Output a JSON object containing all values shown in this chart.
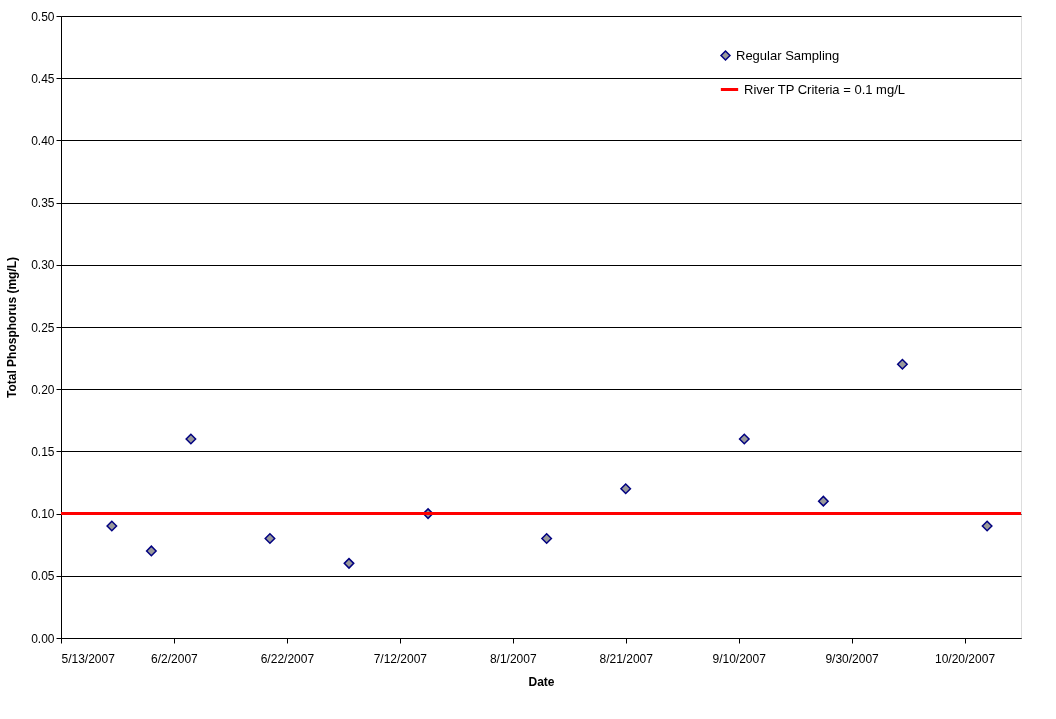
{
  "chart_data": {
    "type": "scatter",
    "xlabel": "Date",
    "ylabel": "Total Phosphorus (mg/L)",
    "x": [
      "2007-05-22",
      "2007-05-29",
      "2007-06-05",
      "2007-06-19",
      "2007-07-03",
      "2007-07-17",
      "2007-08-07",
      "2007-08-21",
      "2007-09-11",
      "2007-09-25",
      "2007-10-09",
      "2007-10-24"
    ],
    "series": [
      {
        "name": "Regular Sampling",
        "color": "#999999",
        "values": [
          0.09,
          0.07,
          0.16,
          0.08,
          0.06,
          0.1,
          0.08,
          0.12,
          0.16,
          0.11,
          0.22,
          0.09
        ]
      }
    ],
    "marker": "diamond",
    "ref_lines": [
      {
        "axis": "y",
        "value": 0.1,
        "label": "River TP Criteria = 0.1 mg/L",
        "color": "#ff0000"
      }
    ],
    "xlim": [
      "2007-05-13",
      "2007-10-30"
    ],
    "xticks": [
      {
        "value": "2007-05-13",
        "label": "5/13/2007"
      },
      {
        "value": "2007-06-02",
        "label": "6/2/2007"
      },
      {
        "value": "2007-06-22",
        "label": "6/22/2007"
      },
      {
        "value": "2007-07-12",
        "label": "7/12/2007"
      },
      {
        "value": "2007-08-01",
        "label": "8/1/2007"
      },
      {
        "value": "2007-08-21",
        "label": "8/21/2007"
      },
      {
        "value": "2007-09-10",
        "label": "9/10/2007"
      },
      {
        "value": "2007-09-30",
        "label": "9/30/2007"
      },
      {
        "value": "2007-10-20",
        "label": "10/20/2007"
      }
    ],
    "ylim": [
      0,
      0.5
    ],
    "yticks": [
      {
        "value": 0,
        "label": "0.00"
      },
      {
        "value": 0.05,
        "label": "0.05"
      },
      {
        "value": 0.1,
        "label": "0.10"
      },
      {
        "value": 0.15,
        "label": "0.15"
      },
      {
        "value": 0.2,
        "label": "0.20"
      },
      {
        "value": 0.25,
        "label": "0.25"
      },
      {
        "value": 0.3,
        "label": "0.30"
      },
      {
        "value": 0.35,
        "label": "0.35"
      },
      {
        "value": 0.4,
        "label": "0.40"
      },
      {
        "value": 0.45,
        "label": "0.45"
      },
      {
        "value": 0.5,
        "label": "0.50"
      }
    ],
    "grid": "y",
    "legend": "top right"
  }
}
